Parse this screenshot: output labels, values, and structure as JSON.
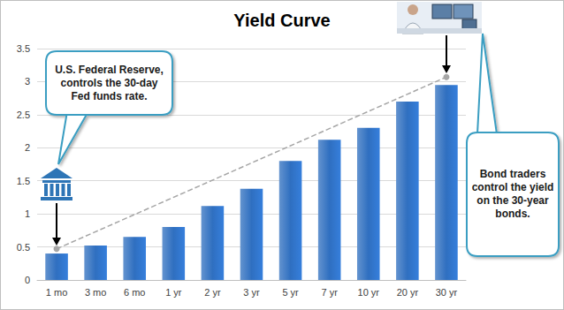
{
  "chart_data": {
    "type": "bar",
    "title": "Yield Curve",
    "categories": [
      "1 mo",
      "3 mo",
      "6 mo",
      "1 yr",
      "2 yr",
      "3 yr",
      "5 yr",
      "7 yr",
      "10 yr",
      "20 yr",
      "30 yr"
    ],
    "values": [
      0.4,
      0.52,
      0.65,
      0.8,
      1.12,
      1.38,
      1.8,
      2.12,
      2.3,
      2.7,
      2.95
    ],
    "color": "#2f6fc0",
    "ylim": [
      0,
      3.5
    ],
    "yticks": [
      0,
      0.5,
      1,
      1.5,
      2,
      2.5,
      3,
      3.5
    ],
    "grid": true,
    "trend_line": {
      "categories": [
        "1 mo",
        "30 yr"
      ],
      "values": [
        0.47,
        3.07
      ],
      "color": "#a6a6a6",
      "line_style": "dashed",
      "marker": "circle"
    },
    "annotations": [
      {
        "text": "U.S. Federal Reserve, controls the 30-day Fed funds rate.",
        "category": "1 mo"
      },
      {
        "text": "Bond traders control the yield on the 30-year bonds.",
        "category": "30 yr"
      }
    ]
  }
}
